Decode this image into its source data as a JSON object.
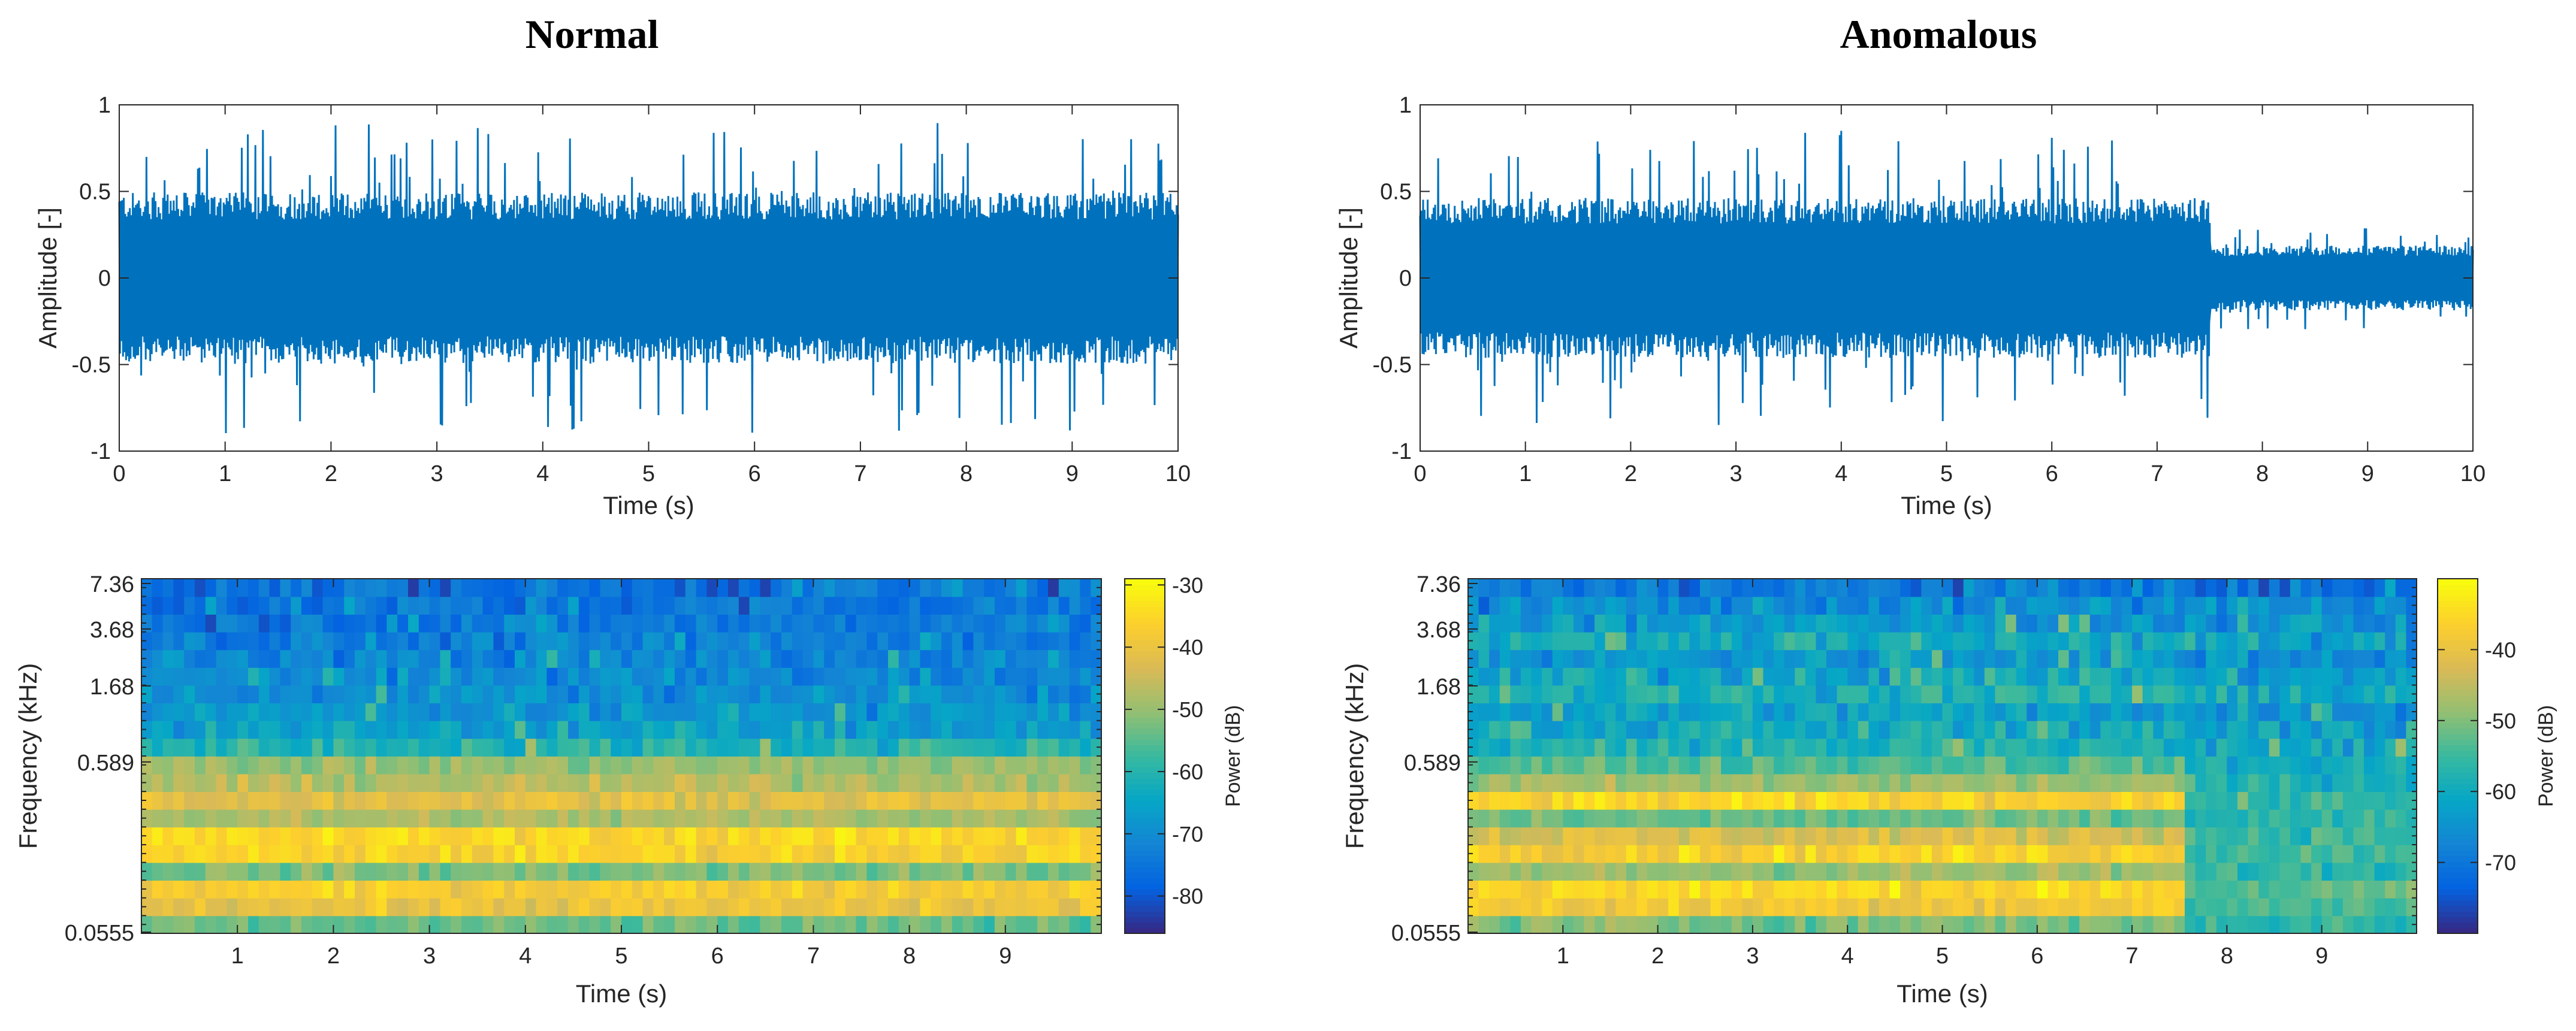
{
  "colors": {
    "waveform": "#0072BD",
    "axis": "#262626",
    "parula": [
      "#352A87",
      "#0363E1",
      "#1485D4",
      "#06A7C6",
      "#38B99E",
      "#92BF73",
      "#D9BA56",
      "#FCCE2E",
      "#F9FB0E"
    ]
  },
  "chart_data": [
    {
      "type": "line",
      "id": "normal-waveform",
      "title": "Normal",
      "xlabel": "Time (s)",
      "ylabel": "Amplitude [-]",
      "xlim": [
        0,
        10
      ],
      "ylim": [
        -1,
        1
      ],
      "xticks": [
        0,
        1,
        2,
        3,
        4,
        5,
        6,
        7,
        8,
        9,
        10
      ],
      "yticks": [
        -1,
        -0.5,
        0,
        0.5,
        1
      ],
      "ytick_labels": [
        "-1",
        "-0.5",
        "0",
        "0.5",
        "1"
      ],
      "envelope": {
        "note": "dense audio waveform; approximate envelope",
        "segments": [
          {
            "t0": 0,
            "t1": 10,
            "core_amp": 0.45,
            "peak_amp": 0.9
          }
        ]
      }
    },
    {
      "type": "line",
      "id": "anomalous-waveform",
      "title": "Anomalous",
      "xlabel": "Time (s)",
      "ylabel": "Amplitude [-]",
      "xlim": [
        0,
        10
      ],
      "ylim": [
        -1,
        1
      ],
      "xticks": [
        0,
        1,
        2,
        3,
        4,
        5,
        6,
        7,
        8,
        9,
        10
      ],
      "yticks": [
        -1,
        -0.5,
        0,
        0.5,
        1
      ],
      "ytick_labels": [
        "-1",
        "-0.5",
        "0",
        "0.5",
        "1"
      ],
      "envelope": {
        "note": "dense audio waveform; amplitude drops at ~7.5 s",
        "segments": [
          {
            "t0": 0,
            "t1": 7.5,
            "core_amp": 0.42,
            "peak_amp": 0.85
          },
          {
            "t0": 7.5,
            "t1": 10,
            "core_amp": 0.17,
            "peak_amp": 0.3
          }
        ]
      }
    },
    {
      "type": "heatmap",
      "id": "normal-spectrogram",
      "xlabel": "Time (s)",
      "ylabel": "Frequency (kHz)",
      "xlim": [
        0,
        10
      ],
      "xticks": [
        1,
        2,
        3,
        4,
        5,
        6,
        7,
        8,
        9
      ],
      "yticks": [
        0.0555,
        0.589,
        1.68,
        3.68,
        7.36
      ],
      "ytick_labels": [
        "0.0555",
        "0.589",
        "1.68",
        "3.68",
        "7.36"
      ],
      "colorbar": {
        "label": "Power (dB)",
        "clim": [
          -86,
          -29
        ],
        "ticks": [
          -30,
          -40,
          -50,
          -60,
          -70,
          -80
        ],
        "tick_labels": [
          "-30",
          "-40",
          "-50",
          "-60",
          "-70",
          "-80"
        ]
      },
      "bands_db": [
        -54,
        -40,
        -37,
        -52,
        -36,
        -35,
        -48,
        -41,
        -47,
        -50,
        -60,
        -66,
        -68,
        -70,
        -71,
        -72,
        -73,
        -74,
        -75,
        -76
      ],
      "change_time": null,
      "after_bands_db": null
    },
    {
      "type": "heatmap",
      "id": "anomalous-spectrogram",
      "xlabel": "Time (s)",
      "ylabel": "Frequency (kHz)",
      "xlim": [
        0,
        10
      ],
      "xticks": [
        1,
        2,
        3,
        4,
        5,
        6,
        7,
        8,
        9
      ],
      "yticks": [
        0.0555,
        0.589,
        1.68,
        3.68,
        7.36
      ],
      "ytick_labels": [
        "0.0555",
        "0.589",
        "1.68",
        "3.68",
        "7.36"
      ],
      "colorbar": {
        "label": "Power (dB)",
        "clim": [
          -80,
          -30
        ],
        "ticks": [
          -40,
          -50,
          -60,
          -70
        ],
        "tick_labels": [
          "-40",
          "-50",
          "-60",
          "-70"
        ]
      },
      "bands_db": [
        -50,
        -38,
        -35,
        -48,
        -36,
        -42,
        -52,
        -36,
        -48,
        -53,
        -58,
        -60,
        -62,
        -58,
        -61,
        -64,
        -60,
        -64,
        -66,
        -70
      ],
      "change_time": 7.6,
      "after_bands_db": [
        -56,
        -54,
        -53,
        -56,
        -54,
        -55,
        -57,
        -56,
        -58,
        -60,
        -62,
        -63,
        -64,
        -61,
        -63,
        -65,
        -63,
        -66,
        -68,
        -72
      ]
    }
  ]
}
